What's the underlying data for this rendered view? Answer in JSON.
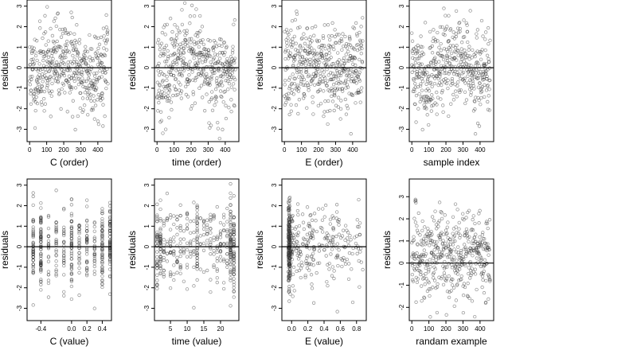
{
  "chart_data": [
    {
      "type": "scatter",
      "xlabel": "C (order)",
      "ylabel": "residuals",
      "xlim": [
        -15,
        480
      ],
      "ylim": [
        -3.6,
        3.3
      ],
      "xticks": [
        0,
        100,
        200,
        300,
        400
      ],
      "yticks": [
        -3,
        -2,
        -1,
        0,
        1,
        2,
        3
      ],
      "hline": 0,
      "n_points": 460,
      "pattern": "order",
      "seed": 11
    },
    {
      "type": "scatter",
      "xlabel": "time (order)",
      "ylabel": "residuals",
      "xlim": [
        -15,
        480
      ],
      "ylim": [
        -3.6,
        3.3
      ],
      "xticks": [
        0,
        100,
        200,
        300,
        400
      ],
      "yticks": [
        -3,
        -2,
        -1,
        0,
        1,
        2,
        3
      ],
      "hline": 0,
      "n_points": 460,
      "pattern": "order",
      "seed": 23
    },
    {
      "type": "scatter",
      "xlabel": "E (order)",
      "ylabel": "residuals",
      "xlim": [
        -15,
        480
      ],
      "ylim": [
        -3.6,
        3.3
      ],
      "xticks": [
        0,
        100,
        200,
        300,
        400
      ],
      "yticks": [
        -3,
        -2,
        -1,
        0,
        1,
        2,
        3
      ],
      "hline": 0,
      "n_points": 460,
      "pattern": "order",
      "seed": 37
    },
    {
      "type": "scatter",
      "xlabel": "sample index",
      "ylabel": "residuals",
      "xlim": [
        -15,
        480
      ],
      "ylim": [
        -3.6,
        3.3
      ],
      "xticks": [
        0,
        100,
        200,
        300,
        400
      ],
      "yticks": [
        -3,
        -2,
        -1,
        0,
        1,
        2,
        3
      ],
      "hline": 0,
      "n_points": 460,
      "pattern": "order",
      "seed": 41
    },
    {
      "type": "scatter",
      "xlabel": "C (value)",
      "ylabel": "residuals",
      "xlim": [
        -0.58,
        0.52
      ],
      "ylim": [
        -3.6,
        3.3
      ],
      "xticks": [
        -0.4,
        0.0,
        0.2,
        0.4
      ],
      "xtick_labels": [
        "-0.4",
        "0.0",
        "0.2",
        "0.4"
      ],
      "yticks": [
        -3,
        -2,
        -1,
        0,
        1,
        2,
        3
      ],
      "hline": 0,
      "n_points": 460,
      "pattern": "columns",
      "x_levels": [
        -0.5,
        -0.4,
        -0.3,
        -0.2,
        -0.1,
        0.0,
        0.1,
        0.2,
        0.3,
        0.4,
        0.5
      ],
      "seed": 53
    },
    {
      "type": "scatter",
      "xlabel": "time (value)",
      "ylabel": "residuals",
      "xlim": [
        0.2,
        25.5
      ],
      "ylim": [
        -3.6,
        3.3
      ],
      "xticks": [
        5,
        10,
        15,
        20
      ],
      "yticks": [
        -3,
        -2,
        -1,
        0,
        1,
        2,
        3
      ],
      "hline": 0,
      "n_points": 460,
      "pattern": "columns",
      "x_levels": [
        1,
        2,
        3,
        4,
        5,
        6,
        7,
        8,
        9,
        10,
        11,
        12,
        13,
        14,
        15,
        16,
        17,
        18,
        19,
        20,
        21,
        22,
        23,
        24
      ],
      "seed": 61
    },
    {
      "type": "scatter",
      "xlabel": "E (value)",
      "ylabel": "residuals",
      "xlim": [
        -0.12,
        0.92
      ],
      "ylim": [
        -3.6,
        3.3
      ],
      "xticks": [
        0.0,
        0.2,
        0.4,
        0.6,
        0.8
      ],
      "xtick_labels": [
        "0.0",
        "0.2",
        "0.4",
        "0.6",
        "0.8"
      ],
      "yticks": [
        -3,
        -2,
        -1,
        0,
        1,
        2,
        3
      ],
      "hline": 0,
      "n_points": 460,
      "pattern": "skewed",
      "seed": 71
    },
    {
      "type": "scatter",
      "xlabel": "randam example",
      "ylabel": "residuals",
      "xlim": [
        -15,
        480
      ],
      "ylim": [
        -2.6,
        3.8
      ],
      "xticks": [
        0,
        100,
        200,
        300,
        400
      ],
      "yticks": [
        -2,
        -1,
        0,
        1,
        2,
        3
      ],
      "hline": 0,
      "n_points": 460,
      "pattern": "random",
      "seed": 83
    }
  ]
}
